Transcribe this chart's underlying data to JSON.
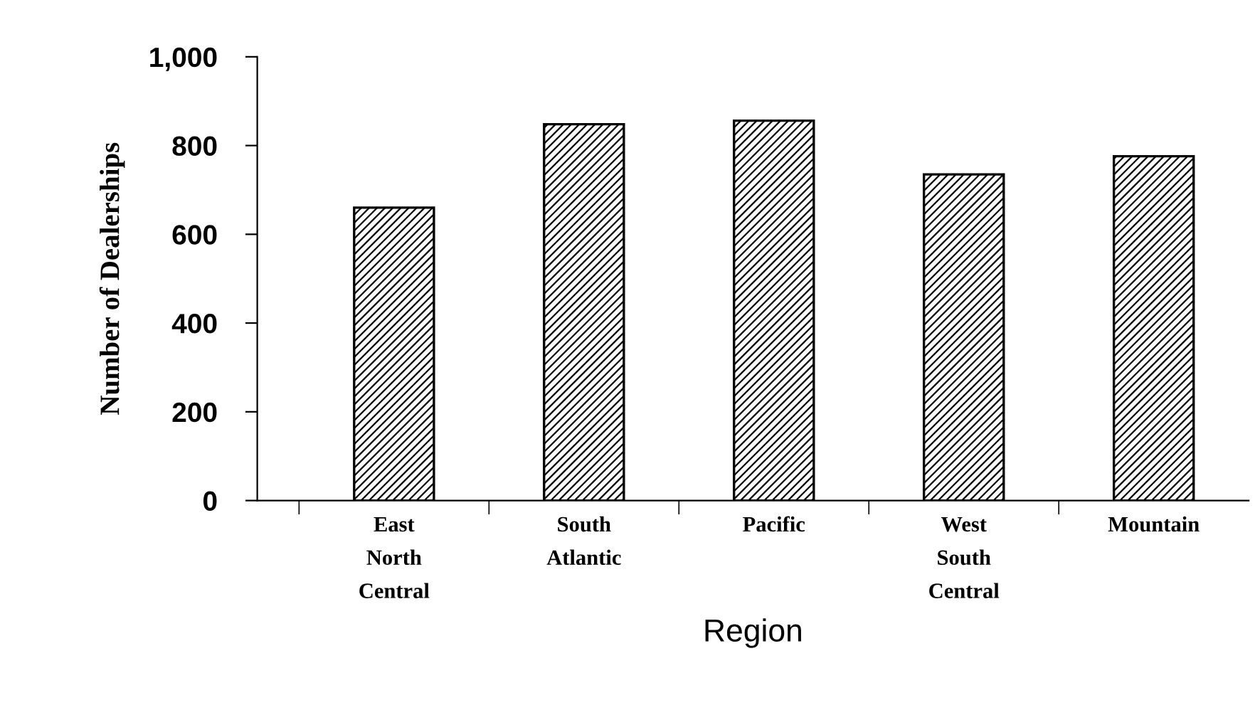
{
  "chart_data": {
    "type": "bar",
    "xlabel": "Region",
    "ylabel": "Number of Dealerships",
    "categories": [
      "East\nNorth\nCentral",
      "South\nAtlantic",
      "Pacific",
      "West\nSouth\nCentral",
      "Mountain"
    ],
    "values": [
      660,
      848,
      856,
      735,
      776
    ],
    "color": "#000000",
    "ylim": [
      0,
      1000
    ],
    "yticks": [
      0,
      200,
      400,
      600,
      800,
      {
        "value": 1000,
        "label": "1,000"
      }
    ],
    "grid": false
  }
}
